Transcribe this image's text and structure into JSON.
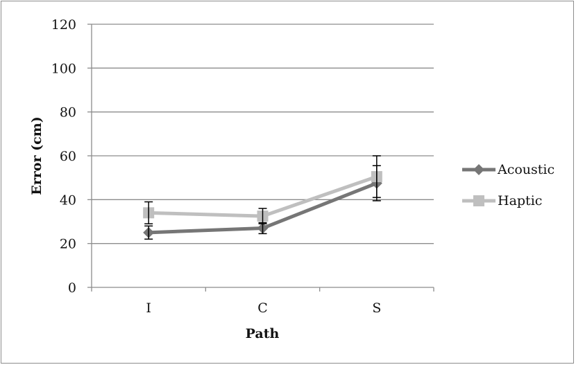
{
  "chart_data": {
    "type": "line",
    "categories": [
      "I",
      "C",
      "S"
    ],
    "series": [
      {
        "name": "Acoustic",
        "values": [
          25,
          27,
          47.5
        ],
        "error": [
          3,
          2.5,
          8
        ],
        "color": "#767676",
        "marker": "diamond"
      },
      {
        "name": "Haptic",
        "values": [
          34,
          32.5,
          50.5
        ],
        "error": [
          5,
          3.5,
          9.5
        ],
        "color": "#bfbfbf",
        "marker": "square"
      }
    ],
    "xlabel": "Path",
    "ylabel": "Error (cm)",
    "ylim": [
      0,
      120
    ],
    "yticks": [
      "0",
      "20",
      "40",
      "60",
      "80",
      "100",
      "120"
    ],
    "grid": true,
    "legend_position": "right"
  }
}
